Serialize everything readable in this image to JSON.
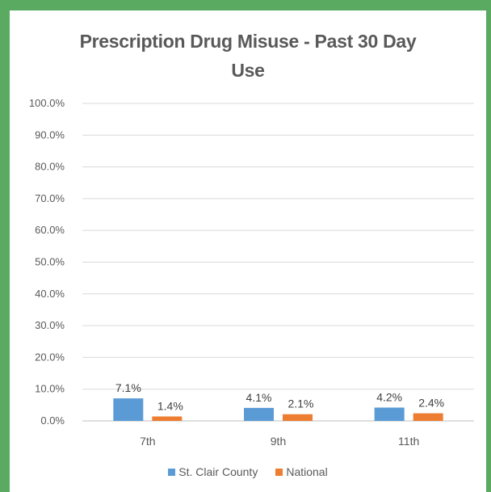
{
  "chart_data": {
    "type": "bar",
    "title": "Prescription Drug Misuse - Past 30 Day Use",
    "title_lines": [
      "Prescription Drug Misuse - Past 30 Day",
      "Use"
    ],
    "categories": [
      "7th",
      "9th",
      "11th"
    ],
    "series": [
      {
        "name": "St. Clair County",
        "color": "#5b9bd5",
        "values": [
          7.1,
          4.1,
          4.2
        ],
        "labels": [
          "7.1%",
          "4.1%",
          "4.2%"
        ]
      },
      {
        "name": "National",
        "color": "#ed7d31",
        "values": [
          1.4,
          2.1,
          2.4
        ],
        "labels": [
          "1.4%",
          "2.1%",
          "2.4%"
        ]
      }
    ],
    "y_ticks": [
      "0.0%",
      "10.0%",
      "20.0%",
      "30.0%",
      "40.0%",
      "50.0%",
      "60.0%",
      "70.0%",
      "80.0%",
      "90.0%",
      "100.0%"
    ],
    "ylim": [
      0,
      100
    ],
    "grid": true,
    "legend_position": "bottom"
  }
}
